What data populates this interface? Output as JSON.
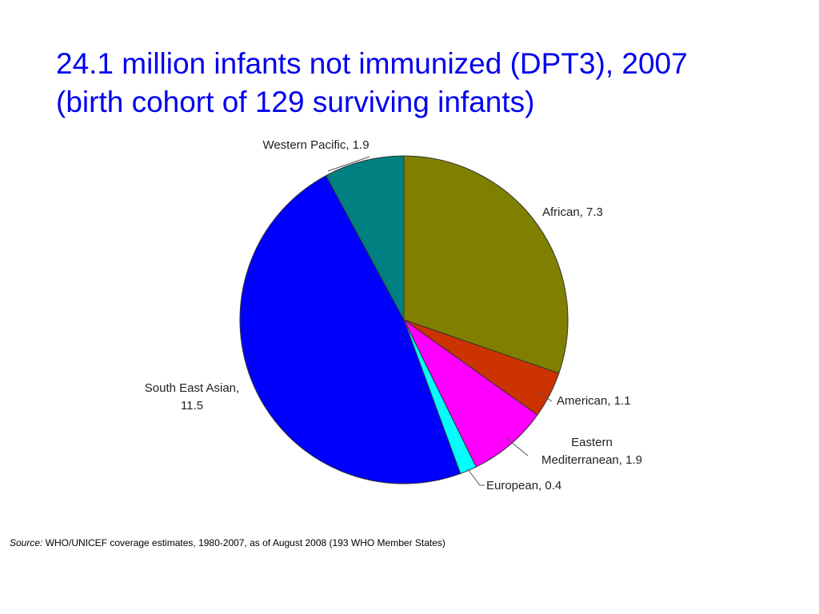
{
  "title": {
    "line1": "24.1 million infants not immunized (DPT3), 2007",
    "line2": "(birth cohort of 129 surviving infants)"
  },
  "colors": {
    "title": "#0000ee"
  },
  "chart_data": {
    "type": "pie",
    "start_angle_deg": 0,
    "direction": "clockwise",
    "slices": [
      {
        "name": "African",
        "value": 7.3,
        "color": "#808000",
        "label_lines": [
          "African, 7.3"
        ]
      },
      {
        "name": "American",
        "value": 1.1,
        "color": "#cc3300",
        "label_lines": [
          "American, 1.1"
        ]
      },
      {
        "name": "Eastern Mediterranean",
        "value": 1.9,
        "color": "#ff00ff",
        "label_lines": [
          "Eastern",
          "Mediterranean, 1.9"
        ]
      },
      {
        "name": "European",
        "value": 0.4,
        "color": "#00ffff",
        "label_lines": [
          "European, 0.4"
        ]
      },
      {
        "name": "South East Asian",
        "value": 11.5,
        "color": "#0000ff",
        "label_lines": [
          "South East Asian,",
          "11.5"
        ]
      },
      {
        "name": "Western Pacific",
        "value": 1.9,
        "color": "#008080",
        "label_lines": [
          "Western Pacific, 1.9"
        ]
      }
    ]
  },
  "footnote": {
    "source_label": "Source:",
    "text": " WHO/UNICEF coverage estimates, 1980-2007, as of August 2008 (193 WHO Member States)"
  }
}
